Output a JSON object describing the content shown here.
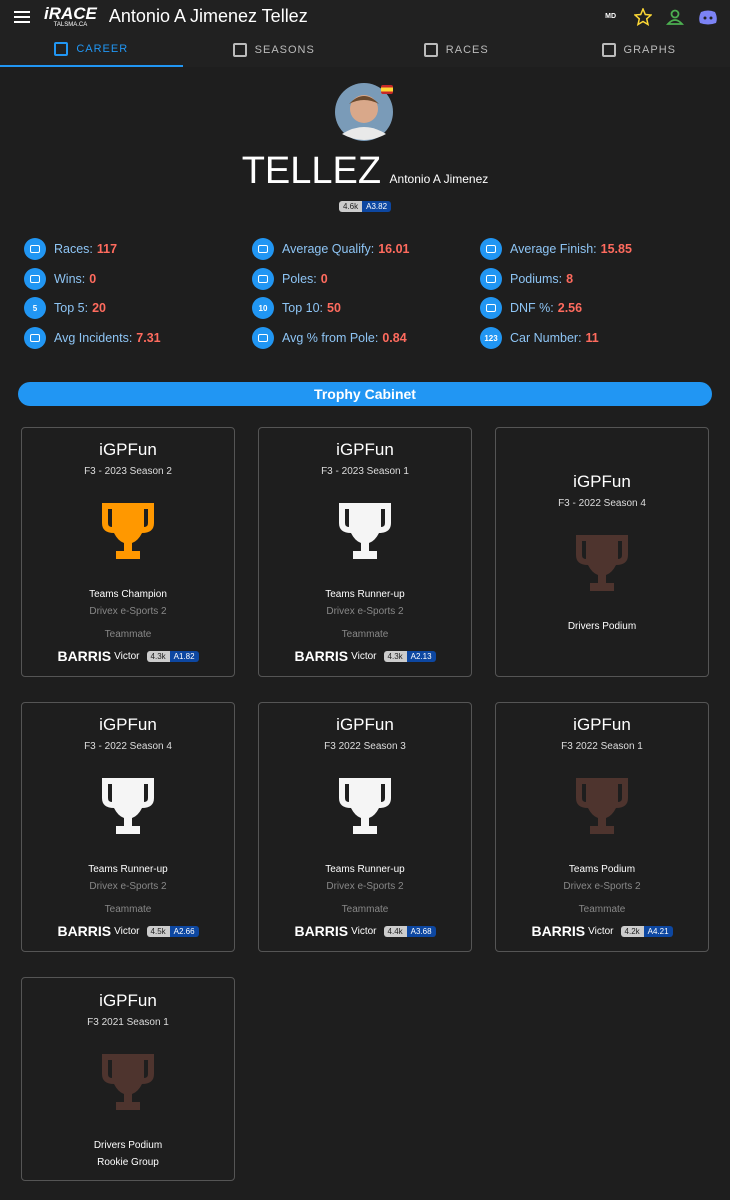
{
  "header": {
    "logo_text": "iRACE",
    "logo_sub": "TALSMA.CA",
    "title": "Antonio A Jimenez Tellez",
    "badge": "MD"
  },
  "tabs": [
    "CAREER",
    "SEASONS",
    "RACES",
    "GRAPHS"
  ],
  "profile": {
    "last_name": "TELLEZ",
    "first_name": "Antonio A Jimenez",
    "irating": "4.6k",
    "license": "A3.82"
  },
  "stats": [
    {
      "label": "Races:",
      "value": 117
    },
    {
      "label": "Average Qualify:",
      "value": 16.01
    },
    {
      "label": "Average Finish:",
      "value": 15.85
    },
    {
      "label": "Wins:",
      "value": 0
    },
    {
      "label": "Poles:",
      "value": 0
    },
    {
      "label": "Podiums:",
      "value": 8
    },
    {
      "label": "Top 5:",
      "value": 20,
      "icon_text": "5"
    },
    {
      "label": "Top 10:",
      "value": 50,
      "icon_text": "10"
    },
    {
      "label": "DNF %:",
      "value": 2.56
    },
    {
      "label": "Avg Incidents:",
      "value": 7.31
    },
    {
      "label": "Avg % from Pole:",
      "value": 0.84
    },
    {
      "label": "Car Number:",
      "value": 11,
      "icon_text": "123"
    }
  ],
  "trophy_cabinet": {
    "title": "Trophy Cabinet",
    "trophies": [
      {
        "series": "iGPFun",
        "season": "F3 - 2023 Season 2",
        "color": "#ff9800",
        "award": "Teams Champion",
        "team": "Drivex e-Sports 2",
        "teammate_label": "Teammate",
        "teammate_last": "BARRIS",
        "teammate_first": "Victor",
        "irating": "4.3k",
        "license": "A1.82"
      },
      {
        "series": "iGPFun",
        "season": "F3 - 2023 Season 1",
        "color": "#f5f5f5",
        "award": "Teams Runner-up",
        "team": "Drivex e-Sports 2",
        "teammate_label": "Teammate",
        "teammate_last": "BARRIS",
        "teammate_first": "Victor",
        "irating": "4.3k",
        "license": "A2.13"
      },
      {
        "series": "iGPFun",
        "season": "F3 - 2022 Season 4",
        "color": "#4e342e",
        "award": "Drivers Podium"
      },
      {
        "series": "iGPFun",
        "season": "F3 - 2022 Season 4",
        "color": "#f5f5f5",
        "award": "Teams Runner-up",
        "team": "Drivex e-Sports 2",
        "teammate_label": "Teammate",
        "teammate_last": "BARRIS",
        "teammate_first": "Victor",
        "irating": "4.5k",
        "license": "A2.66"
      },
      {
        "series": "iGPFun",
        "season": "F3 2022 Season 3",
        "color": "#f5f5f5",
        "award": "Teams Runner-up",
        "team": "Drivex e-Sports 2",
        "teammate_label": "Teammate",
        "teammate_last": "BARRIS",
        "teammate_first": "Victor",
        "irating": "4.4k",
        "license": "A3.68"
      },
      {
        "series": "iGPFun",
        "season": "F3 2022 Season 1",
        "color": "#4e342e",
        "award": "Teams Podium",
        "team": "Drivex e-Sports 2",
        "teammate_label": "Teammate",
        "teammate_last": "BARRIS",
        "teammate_first": "Victor",
        "irating": "4.2k",
        "license": "A4.21"
      },
      {
        "series": "iGPFun",
        "season": "F3 2021 Season 1",
        "color": "#4e342e",
        "award": "Drivers Podium",
        "group": "Rookie Group"
      }
    ]
  }
}
